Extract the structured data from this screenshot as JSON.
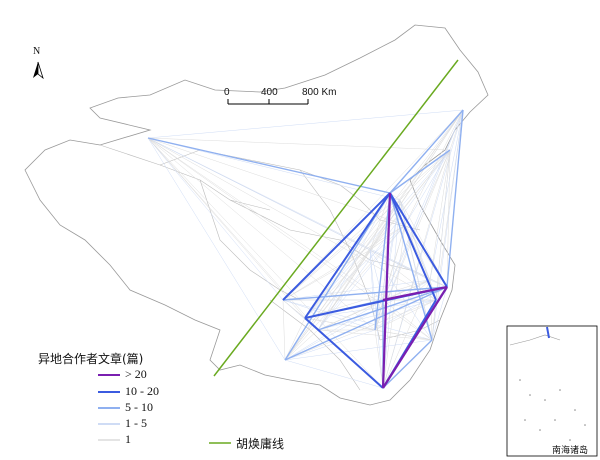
{
  "north_label": "N",
  "scale": {
    "ticks": [
      "0",
      "400",
      "800 Km"
    ]
  },
  "legend": {
    "title": "异地合作者文章(篇)",
    "items": [
      {
        "label": "> 20",
        "color": "#7a1fb0"
      },
      {
        "label": "10 - 20",
        "color": "#3b5be0"
      },
      {
        "label": "5 - 10",
        "color": "#8fb0f0"
      },
      {
        "label": "1 - 5",
        "color": "#cfdcf5"
      },
      {
        "label": "1",
        "color": "#dcdcdc"
      }
    ],
    "hu_line_label": "胡焕庸线",
    "hu_line_color": "#6aaa20"
  },
  "inset_label": "南海诸岛"
}
